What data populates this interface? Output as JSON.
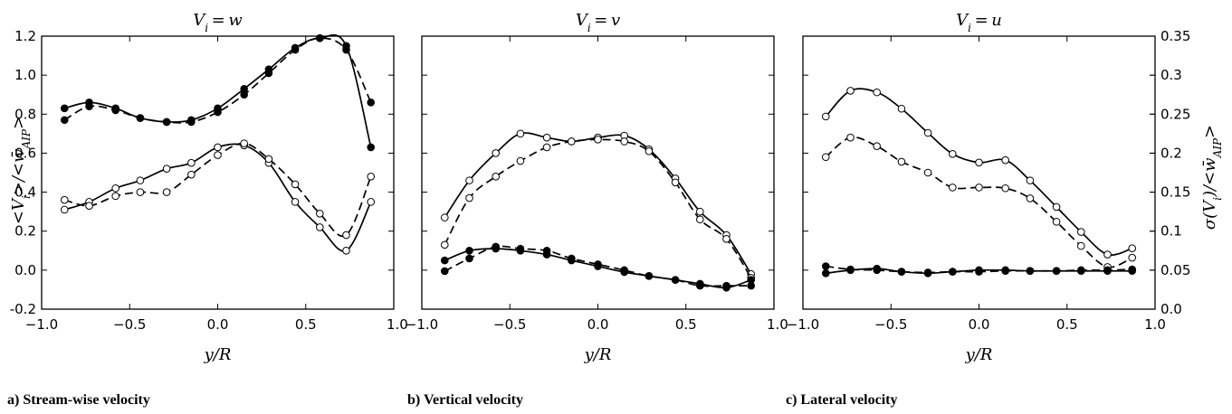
{
  "figure": {
    "xlabel": "y/R",
    "ylabel_left": "<V_i>/<w̄_AIP>",
    "ylabel_right": "σ(V_i)/<w̄_AIP>",
    "left_ylim": [
      -0.2,
      1.2
    ],
    "right_ylim": [
      0.0,
      0.35
    ],
    "left_yticks": [
      "-0.2",
      "0.0",
      "0.2",
      "0.4",
      "0.6",
      "0.8",
      "1.0",
      "1.2"
    ],
    "right_yticks": [
      "0.0",
      "0.05",
      "0.1",
      "0.15",
      "0.2",
      "0.25",
      "0.3",
      "0.35"
    ],
    "xticks": [
      "−1.0",
      "−0.5",
      "0.0",
      "0.5",
      "1.0"
    ],
    "xticks_last": [
      "−1.0",
      "−0.5",
      "0.0",
      "0.5",
      "1.0"
    ]
  },
  "chart_data": [
    {
      "type": "line",
      "title": "V_i = w",
      "caption": "a) Stream-wise velocity",
      "xlim": [
        -1.0,
        1.0
      ],
      "ylim": [
        -0.2,
        1.2
      ],
      "grid": false,
      "series": [
        {
          "axis": "left",
          "marker": "filled",
          "line": "solid",
          "x": [
            -0.87,
            -0.73,
            -0.58,
            -0.44,
            -0.29,
            -0.15,
            0.0,
            0.15,
            0.29,
            0.44,
            0.58,
            0.73,
            0.87
          ],
          "y": [
            0.83,
            0.86,
            0.83,
            0.78,
            0.76,
            0.77,
            0.83,
            0.93,
            1.03,
            1.14,
            1.19,
            1.15,
            0.63
          ]
        },
        {
          "axis": "left",
          "marker": "filled",
          "line": "dashed",
          "x": [
            -0.87,
            -0.73,
            -0.58,
            -0.44,
            -0.29,
            -0.15,
            0.0,
            0.15,
            0.29,
            0.44,
            0.58,
            0.73,
            0.87
          ],
          "y": [
            0.77,
            0.84,
            0.82,
            0.78,
            0.76,
            0.76,
            0.81,
            0.9,
            1.01,
            1.13,
            1.19,
            1.13,
            0.86
          ]
        },
        {
          "axis": "left",
          "marker": "open",
          "line": "solid",
          "x": [
            -0.87,
            -0.73,
            -0.58,
            -0.44,
            -0.29,
            -0.15,
            0.0,
            0.15,
            0.29,
            0.44,
            0.58,
            0.73,
            0.87
          ],
          "y": [
            0.31,
            0.35,
            0.42,
            0.46,
            0.52,
            0.55,
            0.63,
            0.64,
            0.55,
            0.35,
            0.22,
            0.1,
            0.35
          ]
        },
        {
          "axis": "left",
          "marker": "open",
          "line": "dashed",
          "x": [
            -0.87,
            -0.73,
            -0.58,
            -0.44,
            -0.29,
            -0.15,
            0.0,
            0.15,
            0.29,
            0.44,
            0.58,
            0.73,
            0.87
          ],
          "y": [
            0.36,
            0.33,
            0.38,
            0.4,
            0.4,
            0.49,
            0.59,
            0.65,
            0.57,
            0.44,
            0.29,
            0.18,
            0.48
          ]
        }
      ]
    },
    {
      "type": "line",
      "title": "V_i = v",
      "caption": "b) Vertical velocity",
      "xlim": [
        -1.0,
        1.0
      ],
      "ylim": [
        -0.2,
        1.2
      ],
      "grid": false,
      "series": [
        {
          "axis": "left",
          "marker": "open",
          "line": "solid",
          "x": [
            -0.87,
            -0.73,
            -0.58,
            -0.44,
            -0.29,
            -0.15,
            0.0,
            0.15,
            0.29,
            0.44,
            0.58,
            0.73,
            0.87
          ],
          "y": [
            0.27,
            0.46,
            0.6,
            0.7,
            0.68,
            0.66,
            0.68,
            0.69,
            0.62,
            0.47,
            0.3,
            0.18,
            -0.02
          ]
        },
        {
          "axis": "left",
          "marker": "open",
          "line": "dashed",
          "x": [
            -0.87,
            -0.73,
            -0.58,
            -0.44,
            -0.29,
            -0.15,
            0.0,
            0.15,
            0.29,
            0.44,
            0.58,
            0.73,
            0.87
          ],
          "y": [
            0.13,
            0.37,
            0.48,
            0.56,
            0.63,
            0.66,
            0.67,
            0.66,
            0.61,
            0.45,
            0.26,
            0.16,
            -0.04
          ]
        },
        {
          "axis": "left",
          "marker": "filled",
          "line": "solid",
          "x": [
            -0.87,
            -0.73,
            -0.58,
            -0.44,
            -0.29,
            -0.15,
            0.0,
            0.15,
            0.29,
            0.44,
            0.58,
            0.73,
            0.87
          ],
          "y": [
            0.05,
            0.1,
            0.11,
            0.1,
            0.08,
            0.05,
            0.02,
            -0.01,
            -0.03,
            -0.05,
            -0.07,
            -0.09,
            -0.05
          ]
        },
        {
          "axis": "left",
          "marker": "filled",
          "line": "dashed",
          "x": [
            -0.87,
            -0.73,
            -0.58,
            -0.44,
            -0.29,
            -0.15,
            0.0,
            0.15,
            0.29,
            0.44,
            0.58,
            0.73,
            0.87
          ],
          "y": [
            -0.005,
            0.06,
            0.12,
            0.11,
            0.1,
            0.06,
            0.03,
            0.0,
            -0.03,
            -0.05,
            -0.08,
            -0.08,
            -0.08
          ]
        }
      ]
    },
    {
      "type": "line",
      "title": "V_i = u",
      "caption": "c) Lateral velocity",
      "xlim": [
        -1.0,
        1.0
      ],
      "ylim": [
        0.0,
        0.35
      ],
      "grid": false,
      "series": [
        {
          "axis": "right",
          "marker": "open",
          "line": "solid",
          "x": [
            -0.87,
            -0.73,
            -0.58,
            -0.44,
            -0.29,
            -0.15,
            0.0,
            0.15,
            0.29,
            0.44,
            0.58,
            0.73,
            0.87
          ],
          "y": [
            0.247,
            0.28,
            0.278,
            0.257,
            0.226,
            0.199,
            0.188,
            0.191,
            0.165,
            0.131,
            0.099,
            0.07,
            0.078
          ]
        },
        {
          "axis": "right",
          "marker": "open",
          "line": "dashed",
          "x": [
            -0.87,
            -0.73,
            -0.58,
            -0.44,
            -0.29,
            -0.15,
            0.0,
            0.15,
            0.29,
            0.44,
            0.58,
            0.73,
            0.87
          ],
          "y": [
            0.195,
            0.22,
            0.209,
            0.189,
            0.175,
            0.156,
            0.156,
            0.155,
            0.142,
            0.112,
            0.081,
            0.054,
            0.066
          ]
        },
        {
          "axis": "right",
          "marker": "filled",
          "line": "solid",
          "x": [
            -0.87,
            -0.73,
            -0.58,
            -0.44,
            -0.29,
            -0.15,
            0.0,
            0.15,
            0.29,
            0.44,
            0.58,
            0.73,
            0.87
          ],
          "y": [
            0.046,
            0.05,
            0.052,
            0.048,
            0.046,
            0.048,
            0.05,
            0.05,
            0.049,
            0.049,
            0.049,
            0.049,
            0.049
          ]
        },
        {
          "axis": "right",
          "marker": "filled",
          "line": "dashed",
          "x": [
            -0.87,
            -0.73,
            -0.58,
            -0.44,
            -0.29,
            -0.15,
            0.0,
            0.15,
            0.29,
            0.44,
            0.58,
            0.73,
            0.87
          ],
          "y": [
            0.055,
            0.051,
            0.05,
            0.048,
            0.047,
            0.048,
            0.048,
            0.049,
            0.049,
            0.049,
            0.05,
            0.05,
            0.051
          ]
        }
      ]
    }
  ]
}
